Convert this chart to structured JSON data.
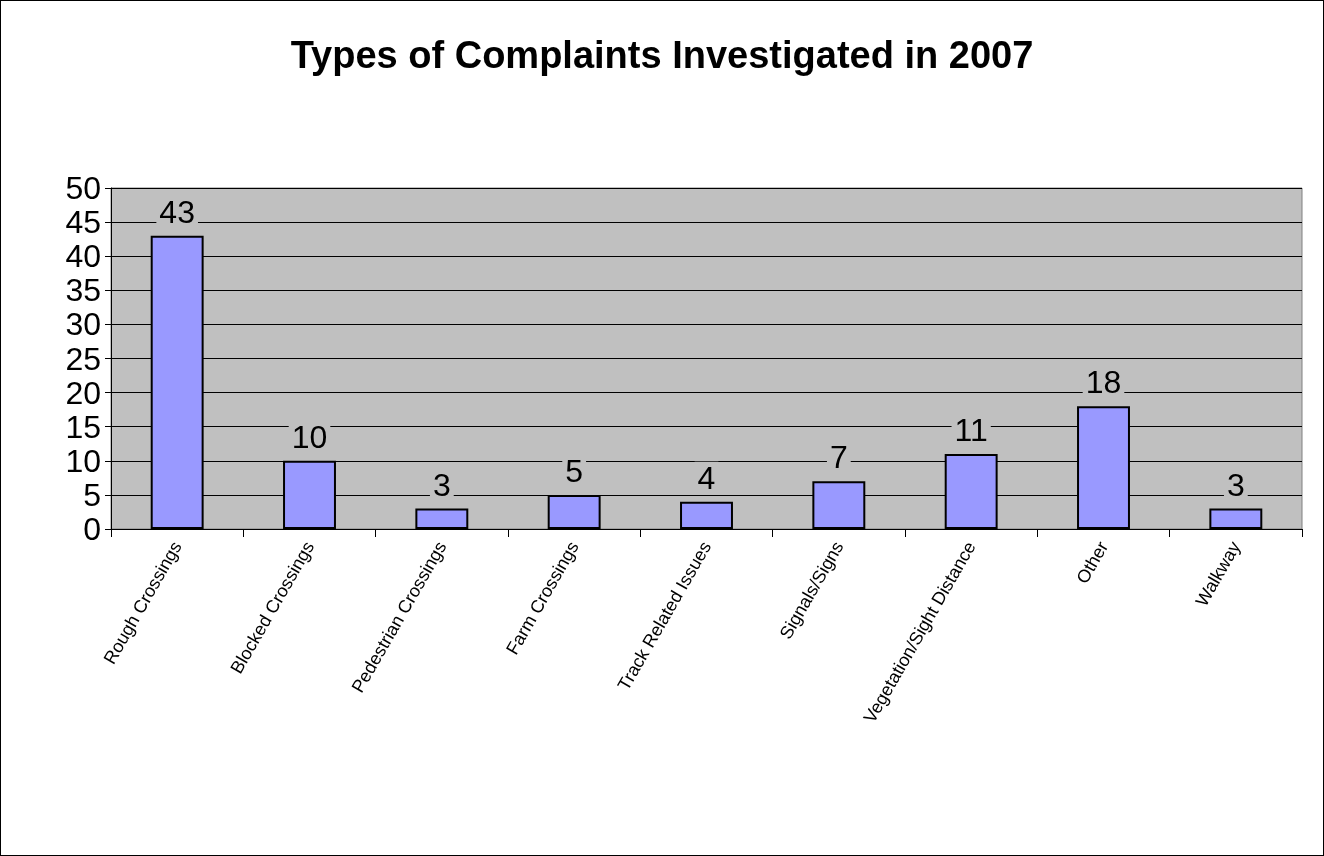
{
  "chart_data": {
    "type": "bar",
    "title": "Types of Complaints Investigated in 2007",
    "categories": [
      "Rough Crossings",
      "Blocked Crossings",
      "Pedestrian Crossings",
      "Farm Crossings",
      "Track Related Issues",
      "Signals/Signs",
      "Vegetation/Sight Distance",
      "Other",
      "Walkway"
    ],
    "values": [
      43,
      10,
      3,
      5,
      4,
      7,
      11,
      18,
      3
    ],
    "color": "#9999ff",
    "ylim": [
      0,
      50
    ],
    "yticks": [
      0,
      5,
      10,
      15,
      20,
      25,
      30,
      35,
      40,
      45,
      50
    ],
    "grid": "y",
    "data_labels": true
  }
}
